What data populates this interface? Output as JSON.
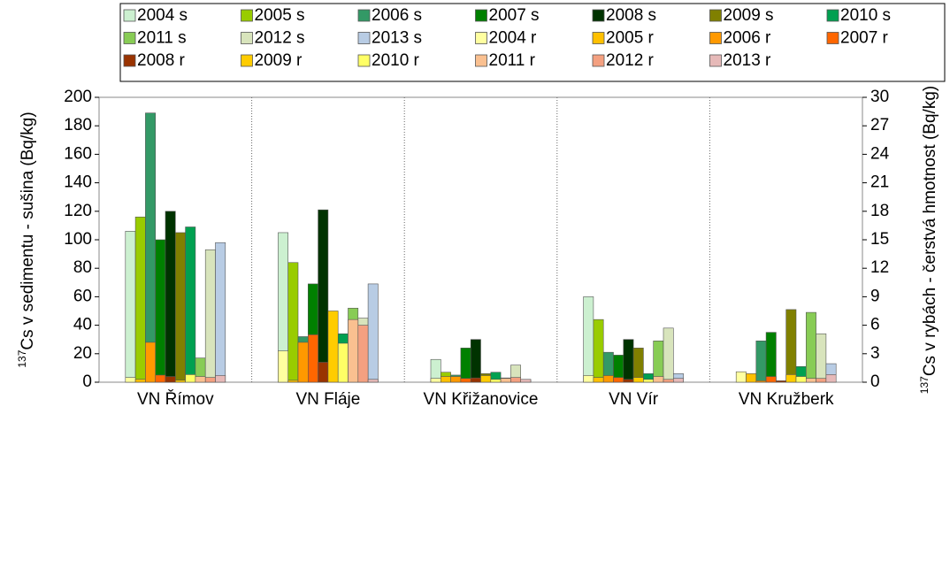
{
  "chart_data": {
    "type": "bar",
    "categories": [
      "VN Římov",
      "VN Fláje",
      "VN Křižanovice",
      "VN Vír",
      "VN Kružberk"
    ],
    "y_label": {
      "sup": "137",
      "text": "Cs v sedimentu - sušina (Bq/kg)"
    },
    "y2_label": {
      "sup": "137",
      "text": "Cs v rybách - čerstvá hmotnost (Bq/kg)"
    },
    "ylim": [
      0,
      200
    ],
    "yticks": [
      0,
      20,
      40,
      60,
      80,
      100,
      120,
      140,
      160,
      180,
      200
    ],
    "y2lim": [
      0,
      30
    ],
    "y2ticks": [
      0,
      3,
      6,
      9,
      12,
      15,
      18,
      21,
      24,
      27,
      30
    ],
    "series": [
      {
        "name": "2004 s",
        "color": "#ccf0d0",
        "values": [
          106,
          105,
          16,
          60,
          null
        ]
      },
      {
        "name": "2005 s",
        "color": "#99cc00",
        "values": [
          116,
          84,
          7,
          44,
          null
        ]
      },
      {
        "name": "2006 s",
        "color": "#339966",
        "values": [
          189,
          32,
          5,
          21,
          29
        ]
      },
      {
        "name": "2007 s",
        "color": "#008000",
        "values": [
          100,
          69,
          24,
          19,
          35
        ]
      },
      {
        "name": "2008 s",
        "color": "#003300",
        "values": [
          120,
          121,
          30,
          30,
          null
        ]
      },
      {
        "name": "2009 s",
        "color": "#808000",
        "values": [
          105,
          null,
          6,
          24,
          51
        ]
      },
      {
        "name": "2010 s",
        "color": "#00a050",
        "values": [
          109,
          34,
          7,
          6,
          11
        ]
      },
      {
        "name": "2011 s",
        "color": "#88cc55",
        "values": [
          17,
          52,
          3,
          29,
          49
        ]
      },
      {
        "name": "2012 s",
        "color": "#d8e4bc",
        "values": [
          93,
          45,
          12,
          38,
          34
        ]
      },
      {
        "name": "2013 s",
        "color": "#b8cce4",
        "values": [
          98,
          69,
          2,
          6,
          13
        ]
      },
      {
        "name": "2004 r",
        "color": "#ffffa0",
        "axis": "y2",
        "values": [
          0.5,
          3.3,
          0.4,
          0.7,
          1.1
        ]
      },
      {
        "name": "2005 r",
        "color": "#ffc000",
        "axis": "y2",
        "values": [
          0.3,
          0.2,
          0.6,
          0.5,
          0.9
        ]
      },
      {
        "name": "2006 r",
        "color": "#ff9900",
        "axis": "y2",
        "values": [
          4.2,
          4.2,
          0.6,
          0.7,
          0.15
        ]
      },
      {
        "name": "2007 r",
        "color": "#ff6600",
        "axis": "y2",
        "values": [
          0.75,
          5.0,
          0.4,
          0.5,
          0.6
        ]
      },
      {
        "name": "2008 r",
        "color": "#993300",
        "axis": "y2",
        "values": [
          0.6,
          2.1,
          0.45,
          0.3,
          0.15
        ]
      },
      {
        "name": "2009 r",
        "color": "#ffcc00",
        "axis": "y2",
        "values": [
          0.2,
          7.5,
          0.7,
          0.5,
          0.8
        ]
      },
      {
        "name": "2010 r",
        "color": "#ffff66",
        "axis": "y2",
        "values": [
          0.8,
          4.1,
          0.3,
          0.3,
          0.6
        ]
      },
      {
        "name": "2011 r",
        "color": "#fac090",
        "axis": "y2",
        "values": [
          0.6,
          6.6,
          0.4,
          0.6,
          0.4
        ]
      },
      {
        "name": "2012 r",
        "color": "#f4a080",
        "axis": "y2",
        "values": [
          0.5,
          6.0,
          0.5,
          0.3,
          0.4
        ]
      },
      {
        "name": "2013 r",
        "color": "#e6b9b8",
        "axis": "y2",
        "values": [
          0.7,
          0.3,
          0.3,
          0.4,
          0.8
        ]
      }
    ]
  }
}
